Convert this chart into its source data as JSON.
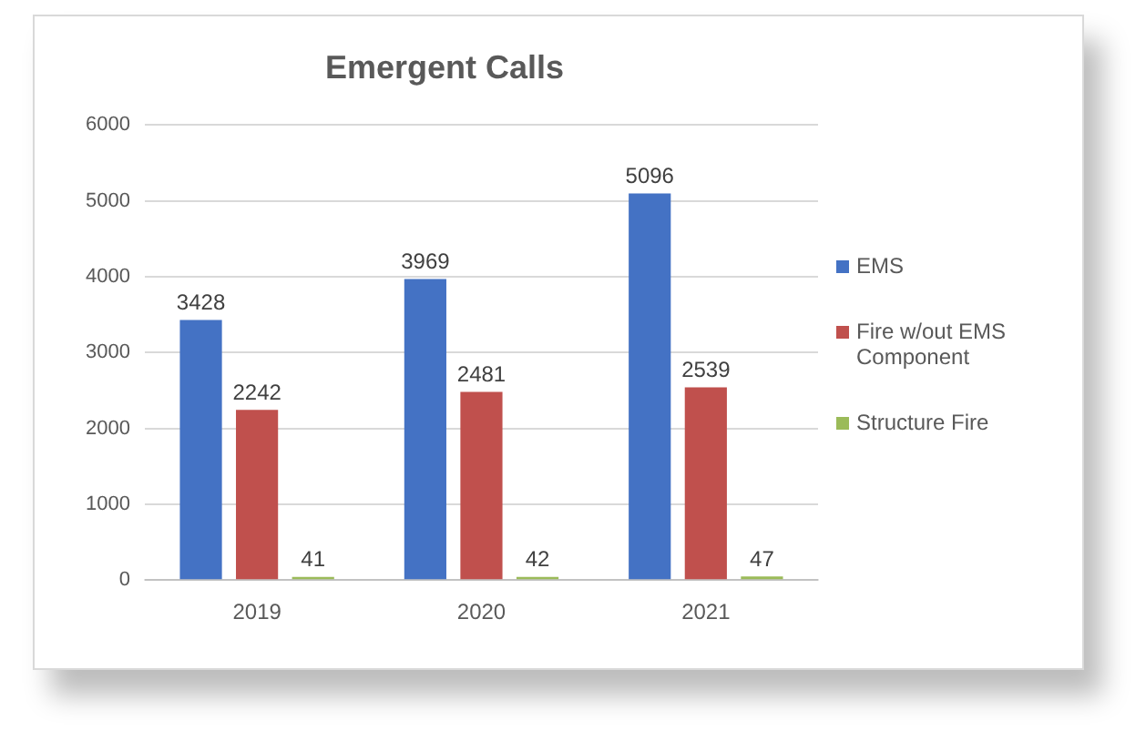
{
  "chart_data": {
    "type": "bar",
    "title": "Emergent Calls",
    "categories": [
      "2019",
      "2020",
      "2021"
    ],
    "series": [
      {
        "name": "EMS",
        "color": "#4472c4",
        "values": [
          3428,
          3969,
          5096
        ]
      },
      {
        "name": "Fire w/out EMS Component",
        "color": "#c0504d",
        "values": [
          2242,
          2481,
          2539
        ]
      },
      {
        "name": "Structure Fire",
        "color": "#9bbb59",
        "values": [
          41,
          42,
          47
        ]
      }
    ],
    "ylim": [
      0,
      6000
    ],
    "yticks": [
      0,
      1000,
      2000,
      3000,
      4000,
      5000,
      6000
    ],
    "grid": "y",
    "legend": "right",
    "data_labels": true
  }
}
